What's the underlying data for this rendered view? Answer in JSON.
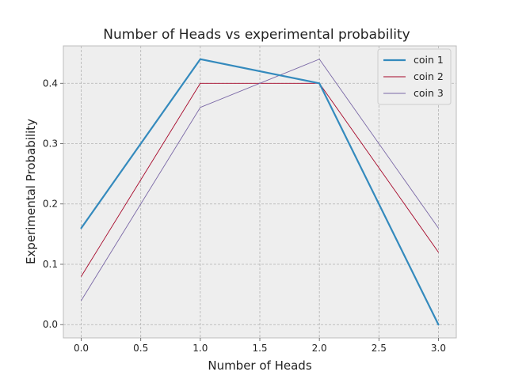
{
  "chart_data": {
    "type": "line",
    "title": "Number of Heads vs experimental probability",
    "xlabel": "Number of Heads",
    "ylabel": "Experimental Probability",
    "xlim": [
      -0.15,
      3.15
    ],
    "ylim": [
      -0.022,
      0.462
    ],
    "xticks": [
      0.0,
      0.5,
      1.0,
      1.5,
      2.0,
      2.5,
      3.0
    ],
    "xtick_labels": [
      "0.0",
      "0.5",
      "1.0",
      "1.5",
      "2.0",
      "2.5",
      "3.0"
    ],
    "yticks": [
      0.0,
      0.1,
      0.2,
      0.3,
      0.4
    ],
    "ytick_labels": [
      "0.0",
      "0.1",
      "0.2",
      "0.3",
      "0.4"
    ],
    "grid": true,
    "legend_position": "top-right",
    "x": [
      0,
      1,
      2,
      3
    ],
    "series": [
      {
        "name": "coin 1",
        "values": [
          0.16,
          0.44,
          0.4,
          0.0
        ],
        "color": "#348ABD",
        "weight": "bold"
      },
      {
        "name": "coin 2",
        "values": [
          0.08,
          0.4,
          0.4,
          0.12
        ],
        "color": "#A60628",
        "weight": "thin"
      },
      {
        "name": "coin 3",
        "values": [
          0.04,
          0.36,
          0.44,
          0.16
        ],
        "color": "#7A68A6",
        "weight": "thin"
      }
    ],
    "colors": {
      "axes_background": "#EEEEEE",
      "grid": "#B2B2B2",
      "spine": "#BCBCBC",
      "text": "#222222"
    }
  }
}
